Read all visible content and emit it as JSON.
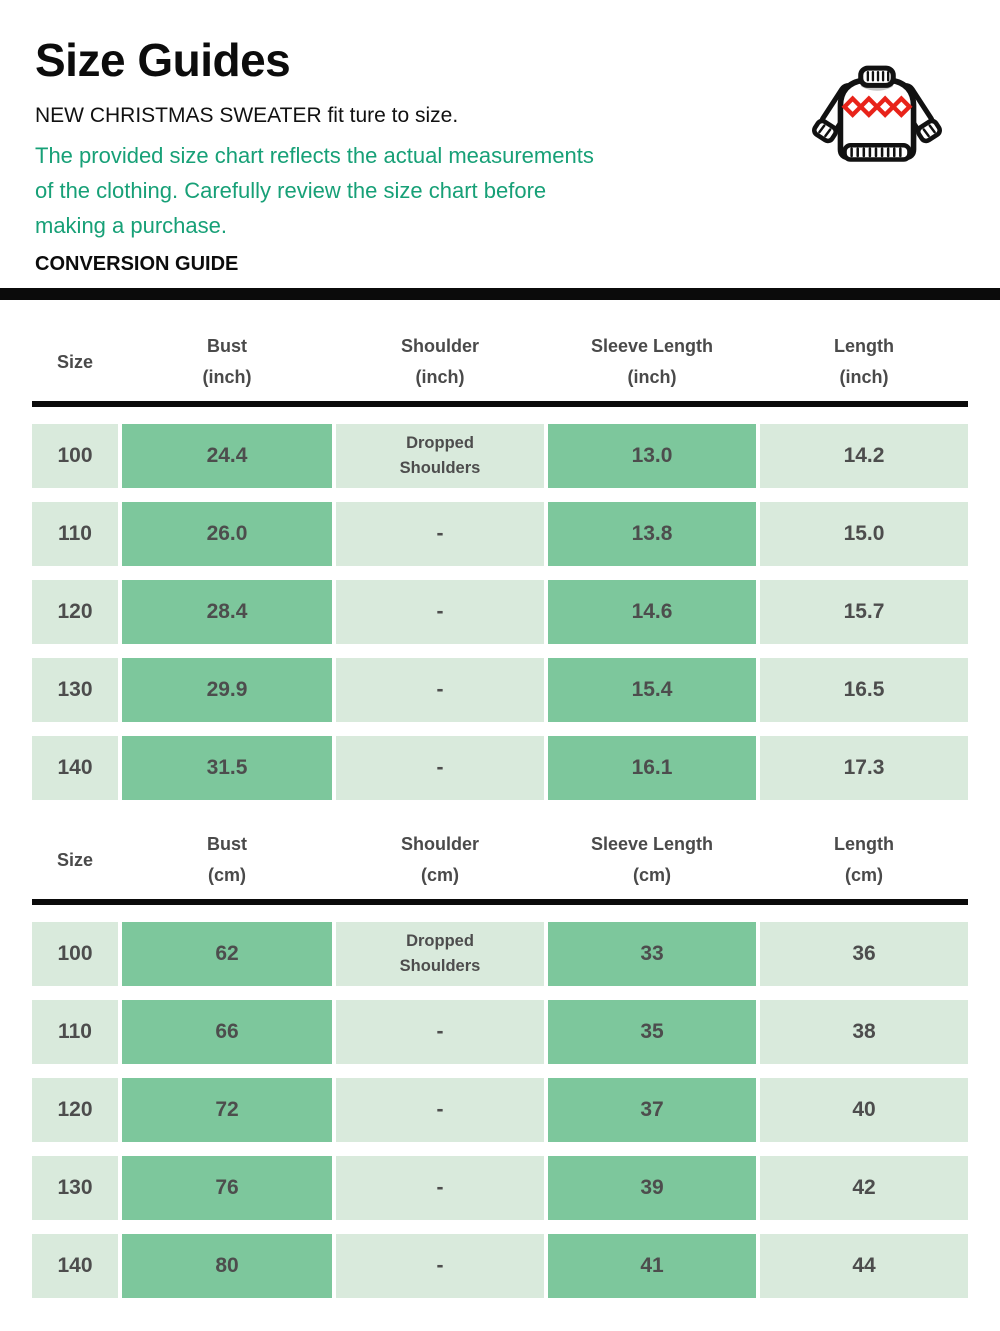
{
  "header": {
    "title": "Size Guides",
    "subtitle": "NEW CHRISTMAS SWEATER fit ture to size.",
    "note": "The provided size chart reflects the actual measurements\nof the clothing. Carefully review the size chart before\nmaking a purchase.",
    "section_label": "CONVERSION GUIDE"
  },
  "icons": {
    "sweater": "sweater-icon"
  },
  "colors": {
    "accent_green_text": "#17a077",
    "cell_dark": "#7dc79c",
    "cell_light": "#d9eadc",
    "rule_black": "#0b0b0b",
    "table_text": "#4d4d4d",
    "sweater_outline": "#111111",
    "sweater_diamond_red": "#e8231a"
  },
  "tables": [
    {
      "id": "inch",
      "unit": "inch",
      "columns": [
        {
          "label": "Size",
          "shade": "light"
        },
        {
          "label": "Bust\n(inch)",
          "shade": "dark"
        },
        {
          "label": "Shoulder\n(inch)",
          "shade": "light"
        },
        {
          "label": "Sleeve Length\n(inch)",
          "shade": "dark"
        },
        {
          "label": "Length\n(inch)",
          "shade": "light"
        }
      ],
      "rows": [
        {
          "cells": [
            "100",
            "24.4",
            "Dropped\nShoulders",
            "13.0",
            "14.2"
          ]
        },
        {
          "cells": [
            "110",
            "26.0",
            "-",
            "13.8",
            "15.0"
          ]
        },
        {
          "cells": [
            "120",
            "28.4",
            "-",
            "14.6",
            "15.7"
          ]
        },
        {
          "cells": [
            "130",
            "29.9",
            "-",
            "15.4",
            "16.5"
          ]
        },
        {
          "cells": [
            "140",
            "31.5",
            "-",
            "16.1",
            "17.3"
          ]
        }
      ]
    },
    {
      "id": "cm",
      "unit": "cm",
      "columns": [
        {
          "label": "Size",
          "shade": "light"
        },
        {
          "label": "Bust\n(cm)",
          "shade": "dark"
        },
        {
          "label": "Shoulder\n(cm)",
          "shade": "light"
        },
        {
          "label": "Sleeve Length\n(cm)",
          "shade": "dark"
        },
        {
          "label": "Length\n(cm)",
          "shade": "light"
        }
      ],
      "rows": [
        {
          "cells": [
            "100",
            "62",
            "Dropped\nShoulders",
            "33",
            "36"
          ]
        },
        {
          "cells": [
            "110",
            "66",
            "-",
            "35",
            "38"
          ]
        },
        {
          "cells": [
            "120",
            "72",
            "-",
            "37",
            "40"
          ]
        },
        {
          "cells": [
            "130",
            "76",
            "-",
            "39",
            "42"
          ]
        },
        {
          "cells": [
            "140",
            "80",
            "-",
            "41",
            "44"
          ]
        }
      ]
    }
  ]
}
